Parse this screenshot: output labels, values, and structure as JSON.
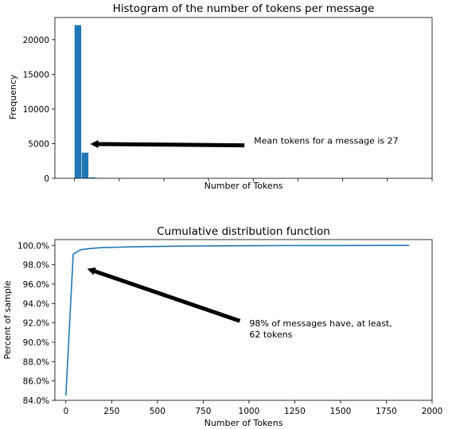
{
  "chart_data": [
    {
      "type": "bar",
      "title": "Histogram of the number of tokens per message",
      "xlabel": "Number of Tokens",
      "ylabel": "Frequency",
      "ylim": [
        0,
        23200
      ],
      "xlim": [
        -110,
        2000
      ],
      "yticks": [
        0,
        5000,
        10000,
        15000,
        20000
      ],
      "ytick_labels": [
        "0",
        "5000",
        "10000",
        "15000",
        "20000"
      ],
      "xticks": [
        0,
        250,
        500,
        750,
        1000,
        1250,
        1500,
        1750,
        2000
      ],
      "bin_edges": [
        0,
        40,
        80,
        120,
        160
      ],
      "values": [
        22100,
        3700,
        120,
        25
      ],
      "color": "#1f77b4",
      "annotation": {
        "text": "Mean tokens for a message is 27",
        "arrow_from": [
          950,
          4750
        ],
        "arrow_to": [
          70,
          4950
        ]
      }
    },
    {
      "type": "line",
      "title": "Cumulative distribution function",
      "xlabel": "Number of Tokens",
      "ylabel": "Percent of sample",
      "xlim": [
        -60,
        2000
      ],
      "ylim": [
        84.0,
        100.6
      ],
      "xticks": [
        0,
        250,
        500,
        750,
        1000,
        1250,
        1500,
        1750,
        2000
      ],
      "xtick_labels": [
        "0",
        "250",
        "500",
        "750",
        "1000",
        "1250",
        "1500",
        "1750",
        "2000"
      ],
      "yticks": [
        84,
        86,
        88,
        90,
        92,
        94,
        96,
        98,
        100
      ],
      "ytick_labels": [
        "84.0%",
        "86.0%",
        "88.0%",
        "90.0%",
        "92.0%",
        "94.0%",
        "96.0%",
        "98.0%",
        "100.0%"
      ],
      "x": [
        0,
        40,
        80,
        120,
        160,
        200,
        300,
        400,
        600,
        800,
        1000,
        1200,
        1500,
        1800,
        1875
      ],
      "y": [
        84.5,
        99.1,
        99.55,
        99.65,
        99.72,
        99.77,
        99.82,
        99.87,
        99.92,
        99.95,
        99.97,
        99.98,
        99.99,
        100.0,
        100.0
      ],
      "color": "#1f77b4",
      "annotation": {
        "text_lines": [
          "98% of messages have, at least,",
          "62 tokens"
        ],
        "arrow_from": [
          950,
          92.2
        ],
        "arrow_to": [
          100,
          97.7
        ]
      }
    }
  ]
}
